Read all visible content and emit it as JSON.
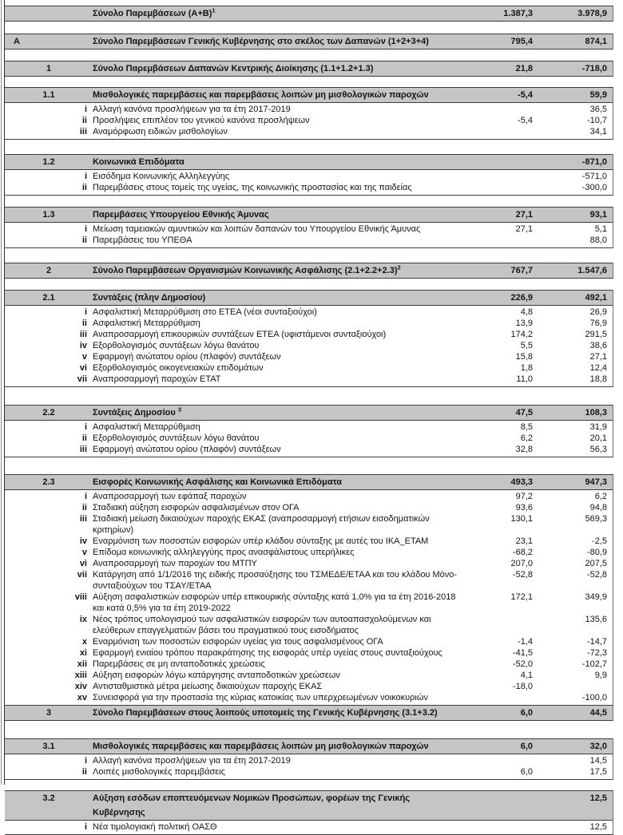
{
  "document": {
    "kind": "fiscal-interventions-table",
    "columns": {
      "value1_name": "column-1",
      "value2_name": "column-2"
    },
    "colors": {
      "header_row_bg": "#c5c5c5",
      "border": "#3c3c3c",
      "text": "#141414"
    },
    "blocks": [
      {
        "name": "total-a-plus-b",
        "margin_top": 7,
        "letter": "",
        "num": "",
        "label": "Σύνολο Παρεμβάσεων (Α+Β)",
        "sup": "1",
        "v1": "1.387,3",
        "v2": "3.978,9",
        "items": []
      },
      {
        "name": "total-general-government-A",
        "margin_top": 15,
        "letter": "Α",
        "num": "",
        "label": "Σύνολο Παρεμβάσεων Γενικής Κυβέρνησης στο σκέλος των Δαπανών (1+2+3+4)",
        "sup": "",
        "v1": "795,4",
        "v2": "874,1",
        "items": []
      },
      {
        "name": "total-central-administration-1",
        "margin_top": 14,
        "letter": "",
        "num": "1",
        "label": "Σύνολο Παρεμβάσεων Δαπανών Κεντρικής Διοίκησης (1.1+1.2+1.3)",
        "sup": "",
        "v1": "21,8",
        "v2": "-718,0",
        "items": []
      },
      {
        "name": "section-1-1",
        "margin_top": 13,
        "letter": "",
        "num": "1.1",
        "label": "Μισθολογικές παρεμβάσεις και παρεμβάσεις λοιπών μη μισθολογικών παροχών",
        "sup": "",
        "v1": "-5,4",
        "v2": "59,9",
        "items": [
          {
            "roman": "i",
            "label": "Αλλαγή κανόνα προσλήψεων για τα έτη 2017-2019",
            "v1": "",
            "v2": "36,5"
          },
          {
            "roman": "ii",
            "label": "Προσλήψεις επιπλέον του γενικού κανόνα προσλήψεων",
            "v1": "-5,4",
            "v2": "-10,7"
          },
          {
            "roman": "iii",
            "label": "Αναμόρφωση ειδικών μισθολογίων",
            "v1": "",
            "v2": "34,1"
          }
        ]
      },
      {
        "name": "section-1-2",
        "margin_top": 18,
        "letter": "",
        "num": "1.2",
        "label": "Κοινωνικά Επιδόματα",
        "sup": "",
        "v1": "",
        "v2": "-871,0",
        "items": [
          {
            "roman": "i",
            "label": "Εισόδημα Κοινωνικής Αλληλεγγύης",
            "v1": "",
            "v2": "-571,0"
          },
          {
            "roman": "ii",
            "label": "Παρεμβάσεις στους τομείς της υγείας, της κοινωνικής προστασίας και της παιδείας",
            "v1": "",
            "v2": "-300,0"
          }
        ]
      },
      {
        "name": "section-1-3",
        "margin_top": 14,
        "letter": "",
        "num": "1.3",
        "label": "Παρεμβάσεις  Υπουργείου Εθνικής Άμυνας",
        "sup": "",
        "v1": "27,1",
        "v2": "93,1",
        "items": [
          {
            "roman": "i",
            "label": "Μείωση ταμειακών αμυντικών και λοιπών δαπανών του Υπουργείου Εθνικής Άμυνας",
            "v1": "27,1",
            "v2": "5,1"
          },
          {
            "roman": "ii",
            "label": "Παρεμβάσεις του ΥΠΕΘΑ",
            "v1": "",
            "v2": "88,0"
          }
        ]
      },
      {
        "name": "total-social-security-2",
        "margin_top": 18,
        "letter": "",
        "num": "2",
        "label": "Σύνολο Παρεμβάσεων Οργανισμών Κοινωνικής Ασφάλισης (2.1+2.2+2.3)",
        "sup": "2",
        "v1": "767,7",
        "v2": "1.547,6",
        "items": []
      },
      {
        "name": "section-2-1",
        "margin_top": 14,
        "letter": "",
        "num": "2.1",
        "label": "Συντάξεις (πλην Δημοσίου)",
        "sup": "",
        "v1": "226,9",
        "v2": "492,1",
        "items": [
          {
            "roman": "i",
            "label": "Ασφαλιστική Μεταρρύθμιση στο ΕΤΕΑ (νέοι συνταξιούχοι)",
            "v1": "4,8",
            "v2": "26,9"
          },
          {
            "roman": "ii",
            "label": "Ασφαλιστική Μεταρρύθμιση",
            "v1": "13,9",
            "v2": "76,9"
          },
          {
            "roman": "iii",
            "label": "Αναπροσαρμογή επικουρικών συντάξεων ΕΤΕΑ (υφιστάμενοι συνταξιούχοι)",
            "v1": "174,2",
            "v2": "291,5"
          },
          {
            "roman": "iv",
            "label": "Εξορθολογισμός συντάξεων λόγω θανάτου",
            "v1": "5,5",
            "v2": "38,6"
          },
          {
            "roman": "v",
            "label": "Εφαρμογή ανώτατου ορίου (πλαφόν) συντάξεων",
            "v1": "15,8",
            "v2": "27,1"
          },
          {
            "roman": "vi",
            "label": "Εξορθολογισμός οικογενειακών επιδομάτων",
            "v1": "1,8",
            "v2": "12,4"
          },
          {
            "roman": "vii",
            "label": "Αναπροσαρμογή παροχών ΕΤΑΤ",
            "v1": "11,0",
            "v2": "18,8"
          }
        ]
      },
      {
        "name": "section-2-2",
        "margin_top": 22,
        "letter": "",
        "num": "2.2",
        "label": "Συντάξεις Δημοσίου ",
        "sup": "3",
        "v1": "47,5",
        "v2": "108,3",
        "items": [
          {
            "roman": "i",
            "label": "Ασφαλιστική Μεταρρύθμιση",
            "v1": "8,5",
            "v2": "31,9"
          },
          {
            "roman": "ii",
            "label": "Εξορθολογισμός συντάξεων λόγω θανάτου",
            "v1": "6,2",
            "v2": "20,1"
          },
          {
            "roman": "iii",
            "label": "Εφαρμογή ανώτατου ορίου (πλαφόν) συντάξεων",
            "v1": "32,8",
            "v2": "56,3"
          }
        ]
      },
      {
        "name": "section-2-3",
        "margin_top": 21,
        "letter": "",
        "num": "2.3",
        "label": "Εισφορές Κοινωνικής Ασφάλισης και Κοινωνικά Επιδόματα",
        "sup": "",
        "v1": "493,3",
        "v2": "947,3",
        "items": [
          {
            "roman": "i",
            "label": "Αναπροσαρμογή των εφάπαξ παροχών",
            "v1": "97,2",
            "v2": "6,2"
          },
          {
            "roman": "ii",
            "label": "Σταδιακή αύξηση εισφορών ασφαλισμένων στον ΟΓΑ",
            "v1": "93,6",
            "v2": "94,8"
          },
          {
            "roman": "iii",
            "label": "Σταδιακή μείωση δικαιούχων παροχής ΕΚΑΣ (αναπροσαρμογή ετήσιων εισοδηματικών κριτηρίων)",
            "v1": "130,1",
            "v2": "569,3"
          },
          {
            "roman": "iv",
            "label": "Εναρμόνιση των ποσοστών εισφορών  υπέρ κλάδου σύνταξης με αυτές του ΙΚΑ_ΕΤΑΜ",
            "v1": "23,1",
            "v2": "-2,5"
          },
          {
            "roman": "v",
            "label": "Επίδομα κοινωνικής αλληλεγγύης προς ανασφάλιστους υπερήλικες",
            "v1": "-68,2",
            "v2": "-80,9"
          },
          {
            "roman": "vi",
            "label": "Αναπροσαρμογή των παροχών του ΜΤΠΥ",
            "v1": "207,0",
            "v2": "207,5"
          },
          {
            "roman": "vii",
            "label": "Κατάργηση από 1/1/2016 της ειδικής προσαύξησης του ΤΣΜΕΔΕ/ΕΤΑΑ και του κλάδου Μόνο-συνταξιούχων του ΤΣΑΥ/ΕΤΑΑ",
            "v1": "-52,8",
            "v2": "-52,8"
          },
          {
            "roman": "viii",
            "label": "Αύξηση ασφαλιστικών εισφορών υπέρ επικουρικής σύνταξης  κατά 1,0% για τα έτη 2016-2018 και κατά 0,5% για τα έτη 2019-2022",
            "v1": "172,1",
            "v2": "349,9"
          },
          {
            "roman": "ix",
            "label": "Νέος τρόπος υπολογισμού των ασφαλιστικών εισφορών των αυτοαπασχολούμενων και ελεύθερων επαγγελματιών βάσει του πραγματικού τους εισοδήματος",
            "v1": "",
            "v2": "135,6"
          },
          {
            "roman": "x",
            "label": "Εναρμόνιση των ποσοστών εισφορών υγείας για τους ασφαλισμένους ΟΓΑ",
            "v1": "-1,4",
            "v2": "-14,7"
          },
          {
            "roman": "xi",
            "label": "Εφαρμογή ενιαίου τρόπου παρακράτησης της εισφοράς υπέρ υγείας στους συνταξιούχους",
            "v1": "-41,5",
            "v2": "-72,3"
          },
          {
            "roman": "xii",
            "label": "Παρεμβάσεις σε μη ανταποδοτικές χρεώσεις",
            "v1": "-52,0",
            "v2": "-102,7"
          },
          {
            "roman": "xiii",
            "label": "Αύξηση εισφορών λόγω κατάργησης ανταποδοτικών χρεώσεων",
            "v1": "4,1",
            "v2": "9,9"
          },
          {
            "roman": "xiv",
            "label": "Αντισταθμιστικά μέτρα μείωσης δικαιούχων παροχής ΕΚΑΣ",
            "v1": "-18,0",
            "v2": ""
          },
          {
            "roman": "xv",
            "label": "Συνεισφορά για την προστασία της κύριας κατοικίας των υπερχρεωμένων νοικοκυριών",
            "v1": "",
            "v2": "-100,0"
          }
        ]
      },
      {
        "name": "total-other-subsectors-3",
        "margin_top": -1,
        "letter": "",
        "num": "3",
        "label": "Σύνολο Παρεμβάσεων στους λοιπούς υποτομείς της Γενικής Κυβέρνησης (3.1+3.2)",
        "sup": "",
        "v1": "6,0",
        "v2": "44,5",
        "items": []
      },
      {
        "name": "section-3-1",
        "margin_top": 22,
        "letter": "",
        "num": "3.1",
        "label": "Μισθολογικές παρεμβάσεις και παρεμβάσεις λοιπών μη μισθολογικών παροχών",
        "sup": "",
        "v1": "6,0",
        "v2": "32,0",
        "items": [
          {
            "roman": "i",
            "label": "Αλλαγή κανόνα προσλήψεων για τα έτη 2017-2019",
            "v1": "",
            "v2": "14,5"
          },
          {
            "roman": "ii",
            "label": "Λοιπές μισθολογικές παρεμβάσεις",
            "v1": "6,0",
            "v2": "17,5"
          }
        ]
      },
      {
        "name": "section-3-2",
        "margin_top": 13,
        "letter": "",
        "num": "3.2",
        "label": "Αύξηση εσόδων εποπτευόμενων Νομικών Προσώπων, φορέων της Γενικής Κυβέρνησης",
        "sup": "",
        "v1": "",
        "v2": "12,5",
        "items": [
          {
            "roman": "i",
            "label": "Νέα τιμολογιακή πολιτική ΟΑΣΘ",
            "v1": "",
            "v2": "12,5"
          }
        ]
      }
    ]
  }
}
